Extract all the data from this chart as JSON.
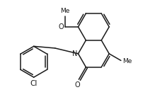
{
  "bg_color": "#ffffff",
  "line_color": "#1a1a1a",
  "line_width": 1.1,
  "font_size": 7.0,
  "fig_width": 2.19,
  "fig_height": 1.44,
  "dpi": 100,
  "xlim": [
    0.0,
    4.4
  ],
  "ylim": [
    0.0,
    3.0
  ]
}
